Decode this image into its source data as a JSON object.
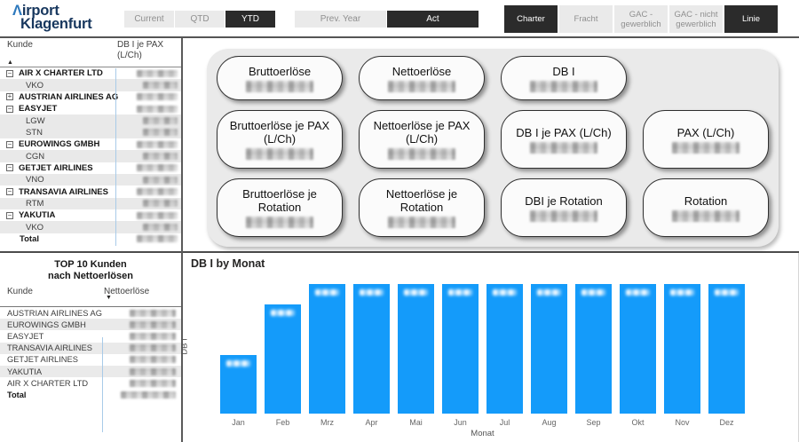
{
  "logo": {
    "accent_char": "Λ",
    "line1_rest": "irport",
    "line2": "Klagenfurt"
  },
  "toolbar": {
    "period": [
      {
        "label": "Current",
        "active": false
      },
      {
        "label": "QTD",
        "active": false
      },
      {
        "label": "YTD",
        "active": true
      }
    ],
    "year": [
      {
        "label": "Prev. Year",
        "active": false
      },
      {
        "label": "Act",
        "active": true
      }
    ],
    "segment": [
      {
        "label": "Charter",
        "active": true
      },
      {
        "label": "Fracht",
        "active": false
      },
      {
        "label": "GAC - gewerblich",
        "active": false
      },
      {
        "label": "GAC - nicht gewerblich",
        "active": false
      },
      {
        "label": "Linie",
        "active": true
      }
    ]
  },
  "kunden_table": {
    "header": {
      "kunde": "Kunde",
      "value_line1": "DB I je PAX",
      "value_line2": "(L/Ch)"
    },
    "sort_indicator": "▲",
    "values_redacted": true,
    "rows": [
      {
        "label": "AIR X CHARTER LTD",
        "type": "parent",
        "expander": "−"
      },
      {
        "label": "VKO",
        "type": "child"
      },
      {
        "label": "AUSTRIAN AIRLINES AG",
        "type": "parent",
        "expander": "+"
      },
      {
        "label": "EASYJET",
        "type": "parent",
        "expander": "−"
      },
      {
        "label": "LGW",
        "type": "child"
      },
      {
        "label": "STN",
        "type": "child"
      },
      {
        "label": "EUROWINGS GMBH",
        "type": "parent",
        "expander": "−"
      },
      {
        "label": "CGN",
        "type": "child"
      },
      {
        "label": "GETJET AIRLINES",
        "type": "parent",
        "expander": "−"
      },
      {
        "label": "VNO",
        "type": "child"
      },
      {
        "label": "TRANSAVIA AIRLINES",
        "type": "parent",
        "expander": "−"
      },
      {
        "label": "RTM",
        "type": "child"
      },
      {
        "label": "YAKUTIA",
        "type": "parent",
        "expander": "−"
      },
      {
        "label": "VKO",
        "type": "child"
      },
      {
        "label": "Total",
        "type": "total"
      }
    ]
  },
  "top10_table": {
    "title_line1": "TOP 10 Kunden",
    "title_line2": "nach Nettoerlösen",
    "header": {
      "kunde": "Kunde",
      "value": "Nettoerlöse"
    },
    "sort_indicator": "▼",
    "values_redacted": true,
    "rows": [
      {
        "label": "AUSTRIAN AIRLINES AG",
        "bold": false
      },
      {
        "label": "EUROWINGS GMBH",
        "bold": false
      },
      {
        "label": "EASYJET",
        "bold": false
      },
      {
        "label": "TRANSAVIA AIRLINES",
        "bold": false
      },
      {
        "label": "GETJET AIRLINES",
        "bold": false
      },
      {
        "label": "YAKUTIA",
        "bold": false
      },
      {
        "label": "AIR X CHARTER LTD",
        "bold": false
      },
      {
        "label": "Total",
        "bold": true
      }
    ]
  },
  "kpi": {
    "values_redacted": true,
    "rows": [
      [
        {
          "title": "Bruttoerlöse"
        },
        {
          "title": "Nettoerlöse"
        },
        {
          "title": "DB I"
        }
      ],
      [
        {
          "title": "Bruttoerlöse je PAX (L/Ch)"
        },
        {
          "title": "Nettoerlöse je PAX (L/Ch)"
        },
        {
          "title": "DB I je PAX (L/Ch)"
        },
        {
          "title": "PAX (L/Ch)"
        }
      ],
      [
        {
          "title": "Bruttoerlöse je Rotation"
        },
        {
          "title": "Nettoerlöse je Rotation"
        },
        {
          "title": "DBI je Rotation"
        },
        {
          "title": "Rotation"
        }
      ]
    ]
  },
  "chart_data": {
    "type": "bar",
    "title": "DB I by Monat",
    "xlabel": "Monat",
    "ylabel": "DB I",
    "categories": [
      "Jan",
      "Feb",
      "Mrz",
      "Apr",
      "Mai",
      "Jun",
      "Jul",
      "Aug",
      "Sep",
      "Okt",
      "Nov",
      "Dez"
    ],
    "values_pct_of_max": [
      45,
      84,
      100,
      100,
      100,
      100,
      100,
      100,
      100,
      100,
      100,
      100
    ],
    "data_labels": "shown-redacted",
    "y_axis_ticks": "hidden",
    "grid": false,
    "bar_color": "#149BFA"
  },
  "colors": {
    "bar_blue": "#149BFA",
    "button_dark": "#2b2b2b",
    "button_light": "#EAEAEA",
    "logo_navy": "#17375E",
    "logo_accent": "#2E79BD",
    "column_divider_blue": "#A9CBE8",
    "kpi_container_gray": "#EAEAEA"
  }
}
